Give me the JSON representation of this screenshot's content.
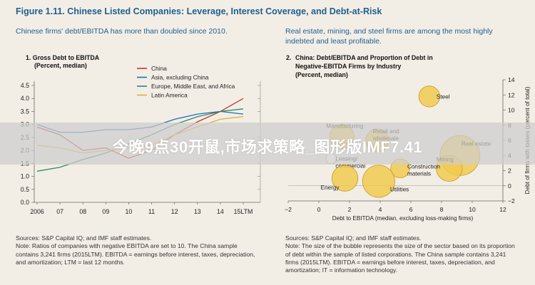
{
  "figure": {
    "title": "Figure 1.11. Chinese Listed Companies: Leverage, Interest Coverage, and Debt-at-Risk"
  },
  "left_panel": {
    "subtitle": "Chinese firms' debt/EBITDA has more than doubled since 2010.",
    "sources": "Sources: S&P Capital IQ; and IMF staff estimates.",
    "note": "Note: Ratios of companies with negative EBITDA are set to 10. The China sample contains 3,241 firms (2015LTM). EBITDA = earnings before interest, taxes, depreciation, and amortization; LTM = last 12 months."
  },
  "right_panel": {
    "subtitle": "Real estate, mining, and steel firms are among the most highly indebted and least profitable.",
    "sources": "Sources: S&P Capital IQ; and IMF staff estimates.",
    "note": "Note: The size of the bubble represents the size of the sector based on its proportion of debt within the sample of listed corporations. The China sample contains 3,241 firms (2015LTM). EBITDA = earnings before interest, taxes, depreciation, and amortization; IT = information technology."
  },
  "banner": {
    "text": "今晚9点30开鼠,市场求策略_图形版IMF7.41"
  },
  "chart_data": [
    {
      "type": "line",
      "title": "1. Gross Debt to EBITDA",
      "subtitle": "(Percent, median)",
      "x": [
        "2006",
        "07",
        "08",
        "09",
        "10",
        "11",
        "12",
        "13",
        "14",
        "15LTM"
      ],
      "ylim": [
        0.0,
        4.5
      ],
      "yticks": [
        "0.0",
        "0.5",
        "1.0",
        "1.5",
        "2.0",
        "2.5",
        "3.0",
        "3.5",
        "4.0",
        "4.5"
      ],
      "series": [
        {
          "name": "China",
          "color": "#c0392b",
          "values": [
            2.9,
            2.6,
            2.0,
            2.1,
            1.7,
            2.0,
            2.6,
            3.1,
            3.5,
            4.0
          ]
        },
        {
          "name": "Asia, excluding China",
          "color": "#1f6fb0",
          "values": [
            3.0,
            2.7,
            2.7,
            2.8,
            2.8,
            2.9,
            3.2,
            3.4,
            3.5,
            3.4
          ]
        },
        {
          "name": "Europe, Middle East, and Africa",
          "color": "#2a8a6a",
          "values": [
            1.2,
            1.35,
            1.65,
            1.9,
            2.25,
            2.6,
            3.0,
            3.3,
            3.5,
            3.6
          ]
        },
        {
          "name": "Latin America",
          "color": "#e0b030",
          "values": [
            2.2,
            2.1,
            1.9,
            2.0,
            2.1,
            2.2,
            2.6,
            2.9,
            3.2,
            3.3
          ]
        }
      ]
    },
    {
      "type": "scatter",
      "title": "2. China: Debt/EBITDA and Proportion of Debt in Negative-EBITDA Firms by Industry",
      "subtitle": "(Percent, median)",
      "xlabel": "Debt to EBITDA (median, excluding loss-making firms)",
      "ylabel": "Debt of firms with losses (percent of total)",
      "xlim": [
        -2,
        12
      ],
      "ylim": [
        -2,
        14
      ],
      "xticks": [
        "−2",
        "0",
        "2",
        "4",
        "6",
        "8",
        "10",
        "12"
      ],
      "yticks": [
        "−2",
        "0",
        "2",
        "4",
        "6",
        "8",
        "10",
        "12",
        "14"
      ],
      "points": [
        {
          "label": "Steel",
          "x": 7.2,
          "y": 11.8,
          "size": 0.2
        },
        {
          "label": "Real estate",
          "x": 9.2,
          "y": 4.0,
          "size": 1.0
        },
        {
          "label": "Mining",
          "x": 8.5,
          "y": 2.3,
          "size": 0.35
        },
        {
          "label": "Manufacturing",
          "x": 1.5,
          "y": 6.5,
          "size": 0.3
        },
        {
          "label": "Retail and wholesale",
          "x": 3.8,
          "y": 6.0,
          "size": 0.25
        },
        {
          "label": "Leasing/commercial",
          "x": 0.8,
          "y": 3.6,
          "size": 0.02
        },
        {
          "label": "Energy",
          "x": 1.7,
          "y": 1.0,
          "size": 0.35
        },
        {
          "label": "Construction materials",
          "x": 5.3,
          "y": 2.3,
          "size": 0.15
        },
        {
          "label": "Utilities",
          "x": 3.9,
          "y": 0.6,
          "size": 0.6
        }
      ]
    }
  ]
}
